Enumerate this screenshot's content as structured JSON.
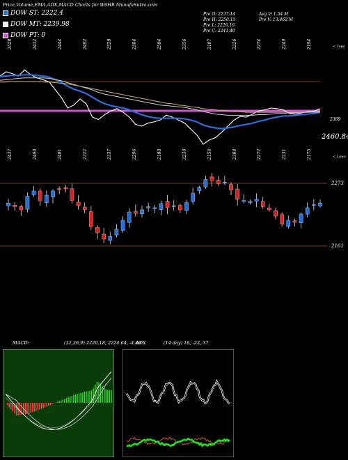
{
  "header": {
    "title": "Price,Volume,EMA,ADX,MACD Charts for W6HB MunafaSutra.com"
  },
  "legend": [
    {
      "label": "DOW ST: 2222.4",
      "color": "#1e6fd9"
    },
    {
      "label": "DOW MT: 2239.98",
      "color": "#f0f0f0"
    },
    {
      "label": "DOW PT: 0",
      "color": "#d84fd8"
    }
  ],
  "stats": {
    "pre_o": "Pre   O: 2237.14",
    "pre_h": "Pre   H: 2250.15",
    "pre_l": "Pre   L: 2226.16",
    "pre_c": "Pre   C: 2241.40",
    "avg_v": "Avg V: 1.54   M",
    "pre_v": "Pre   V: 13.462   M"
  },
  "panel_labels": {
    "tops": "< Tops",
    "lows": "< Lows"
  },
  "chart_data": [
    {
      "type": "line",
      "name": "ema-panel",
      "top_ticks": [
        "2528",
        "2432",
        "2444",
        "2492",
        "2528",
        "2504",
        "2584",
        "2356",
        "2187",
        "2226",
        "2274",
        "2249",
        "2194"
      ],
      "right_labels": [
        "2389",
        "2460.84"
      ],
      "series": [
        {
          "name": "close",
          "color": "#ffffff",
          "values": [
            2398,
            2405,
            2402,
            2398,
            2408,
            2400,
            2395,
            2392,
            2388,
            2375,
            2362,
            2345,
            2350,
            2360,
            2352,
            2330,
            2326,
            2334,
            2340,
            2344,
            2338,
            2330,
            2318,
            2315,
            2320,
            2322,
            2325,
            2333,
            2330,
            2325,
            2320,
            2310,
            2300,
            2285,
            2292,
            2296,
            2305,
            2315,
            2325,
            2331,
            2330,
            2335,
            2340,
            2342,
            2345,
            2344,
            2342,
            2336,
            2335,
            2337,
            2339,
            2340,
            2344
          ]
        },
        {
          "name": "fast",
          "color": "#2a6fe0",
          "values": [
            2397,
            2398,
            2399,
            2399,
            2400,
            2400,
            2399,
            2398,
            2396,
            2392,
            2387,
            2381,
            2376,
            2373,
            2369,
            2363,
            2357,
            2352,
            2349,
            2347,
            2345,
            2342,
            2338,
            2334,
            2331,
            2329,
            2328,
            2328,
            2328,
            2328,
            2327,
            2325,
            2322,
            2317,
            2314,
            2312,
            2311,
            2312,
            2314,
            2316,
            2318,
            2320,
            2323,
            2325,
            2328,
            2330,
            2332,
            2332,
            2333,
            2334,
            2335,
            2336,
            2338
          ]
        },
        {
          "name": "mid",
          "color": "#cfcfcf",
          "values": [
            2391,
            2392,
            2393,
            2394,
            2395,
            2395,
            2395,
            2395,
            2394,
            2392,
            2390,
            2387,
            2384,
            2381,
            2378,
            2375,
            2371,
            2368,
            2366,
            2364,
            2362,
            2360,
            2358,
            2356,
            2354,
            2352,
            2350,
            2349,
            2348,
            2347,
            2346,
            2344,
            2342,
            2339,
            2337,
            2335,
            2334,
            2333,
            2333,
            2333,
            2333,
            2333,
            2334,
            2334,
            2335,
            2336,
            2336,
            2337,
            2337,
            2338,
            2338,
            2339,
            2340
          ]
        },
        {
          "name": "slow",
          "color": "#c9b27a",
          "values": [
            2388,
            2388,
            2389,
            2389,
            2389,
            2389,
            2389,
            2388,
            2388,
            2387,
            2386,
            2385,
            2383,
            2381,
            2379,
            2377,
            2375,
            2373,
            2371,
            2369,
            2367,
            2365,
            2363,
            2361,
            2359,
            2357,
            2355,
            2353,
            2352,
            2350,
            2349,
            2347,
            2346,
            2344,
            2343,
            2342,
            2341,
            2340,
            2339,
            2339,
            2338,
            2338,
            2338,
            2338,
            2338,
            2338,
            2338,
            2338,
            2338,
            2338,
            2338,
            2338,
            2338
          ]
        }
      ]
    },
    {
      "type": "bar",
      "name": "candle-panel",
      "top_ticks": [
        "2437",
        "2490",
        "2401",
        "2322",
        "2337",
        "2296",
        "2188",
        "2230",
        "2156",
        "2308",
        "2272",
        "2231",
        "2175"
      ],
      "right_labels": [
        "2273",
        "2161"
      ]
    },
    {
      "type": "bar",
      "name": "macd-panel",
      "title": "MACD:",
      "values_text": "(12,26,9) 2220.18,  2224.64,  -4.46"
    },
    {
      "type": "line",
      "name": "adx-panel",
      "title": "ADX",
      "values_text": "(14  day) 18,  -23,  37"
    }
  ]
}
